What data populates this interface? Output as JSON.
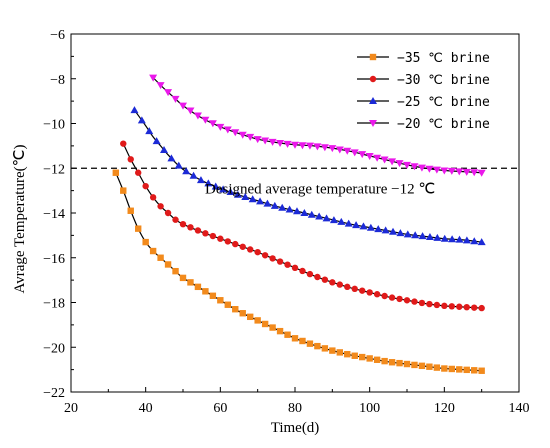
{
  "chart_data": {
    "type": "line",
    "title": "",
    "xlabel": "Time(d)",
    "ylabel": "Avrage Temperature(℃)",
    "xlim": [
      20,
      140
    ],
    "ylim": [
      -22,
      -6
    ],
    "xticks": [
      20,
      40,
      60,
      80,
      100,
      120,
      140
    ],
    "yticks": [
      -22,
      -20,
      -18,
      -16,
      -14,
      -12,
      -10,
      -8,
      -6
    ],
    "grid": false,
    "legend_position": "top-right",
    "reference_line": {
      "y": -12,
      "style": "dashed",
      "label": "Designed average temperature  -12 ℃"
    },
    "series": [
      {
        "name": "-35 ℃ brine",
        "color": "#f28a1c",
        "marker": "square",
        "points": [
          [
            32,
            -12.2
          ],
          [
            34,
            -13.0
          ],
          [
            36,
            -13.9
          ],
          [
            38,
            -14.7
          ],
          [
            40,
            -15.3
          ],
          [
            42,
            -15.7
          ],
          [
            44,
            -16.0
          ],
          [
            46,
            -16.3
          ],
          [
            48,
            -16.6
          ],
          [
            50,
            -16.9
          ],
          [
            55,
            -17.4
          ],
          [
            60,
            -17.9
          ],
          [
            65,
            -18.4
          ],
          [
            70,
            -18.8
          ],
          [
            75,
            -19.2
          ],
          [
            80,
            -19.6
          ],
          [
            85,
            -19.9
          ],
          [
            90,
            -20.15
          ],
          [
            95,
            -20.35
          ],
          [
            100,
            -20.5
          ],
          [
            105,
            -20.65
          ],
          [
            110,
            -20.75
          ],
          [
            115,
            -20.85
          ],
          [
            120,
            -20.95
          ],
          [
            125,
            -21.0
          ],
          [
            130,
            -21.05
          ]
        ]
      },
      {
        "name": "-30 ℃ brine",
        "color": "#e01a1a",
        "marker": "circle",
        "points": [
          [
            34,
            -10.9
          ],
          [
            36,
            -11.6
          ],
          [
            38,
            -12.2
          ],
          [
            40,
            -12.8
          ],
          [
            42,
            -13.3
          ],
          [
            44,
            -13.7
          ],
          [
            46,
            -14.0
          ],
          [
            48,
            -14.3
          ],
          [
            50,
            -14.5
          ],
          [
            55,
            -14.85
          ],
          [
            60,
            -15.15
          ],
          [
            65,
            -15.45
          ],
          [
            70,
            -15.75
          ],
          [
            75,
            -16.1
          ],
          [
            80,
            -16.45
          ],
          [
            85,
            -16.8
          ],
          [
            90,
            -17.1
          ],
          [
            95,
            -17.35
          ],
          [
            100,
            -17.55
          ],
          [
            105,
            -17.75
          ],
          [
            110,
            -17.9
          ],
          [
            115,
            -18.05
          ],
          [
            120,
            -18.15
          ],
          [
            125,
            -18.2
          ],
          [
            130,
            -18.25
          ]
        ]
      },
      {
        "name": "-25 ℃ brine",
        "color": "#1c2ad6",
        "marker": "triangle-up",
        "points": [
          [
            37,
            -9.4
          ],
          [
            40,
            -10.1
          ],
          [
            42,
            -10.6
          ],
          [
            44,
            -11.0
          ],
          [
            46,
            -11.4
          ],
          [
            48,
            -11.75
          ],
          [
            50,
            -12.05
          ],
          [
            55,
            -12.55
          ],
          [
            60,
            -12.9
          ],
          [
            65,
            -13.2
          ],
          [
            70,
            -13.45
          ],
          [
            75,
            -13.7
          ],
          [
            80,
            -13.9
          ],
          [
            85,
            -14.1
          ],
          [
            90,
            -14.3
          ],
          [
            95,
            -14.5
          ],
          [
            100,
            -14.65
          ],
          [
            105,
            -14.8
          ],
          [
            110,
            -14.95
          ],
          [
            115,
            -15.05
          ],
          [
            120,
            -15.15
          ],
          [
            125,
            -15.2
          ],
          [
            130,
            -15.3
          ]
        ]
      },
      {
        "name": "-20 ℃ brine",
        "color": "#ea18ea",
        "marker": "triangle-down",
        "points": [
          [
            42,
            -7.95
          ],
          [
            45,
            -8.45
          ],
          [
            48,
            -8.9
          ],
          [
            50,
            -9.2
          ],
          [
            55,
            -9.75
          ],
          [
            60,
            -10.15
          ],
          [
            65,
            -10.45
          ],
          [
            70,
            -10.7
          ],
          [
            75,
            -10.85
          ],
          [
            80,
            -10.95
          ],
          [
            85,
            -11.0
          ],
          [
            90,
            -11.1
          ],
          [
            95,
            -11.25
          ],
          [
            100,
            -11.45
          ],
          [
            105,
            -11.65
          ],
          [
            110,
            -11.85
          ],
          [
            115,
            -12.0
          ],
          [
            120,
            -12.1
          ],
          [
            125,
            -12.15
          ],
          [
            130,
            -12.2
          ]
        ]
      }
    ]
  }
}
